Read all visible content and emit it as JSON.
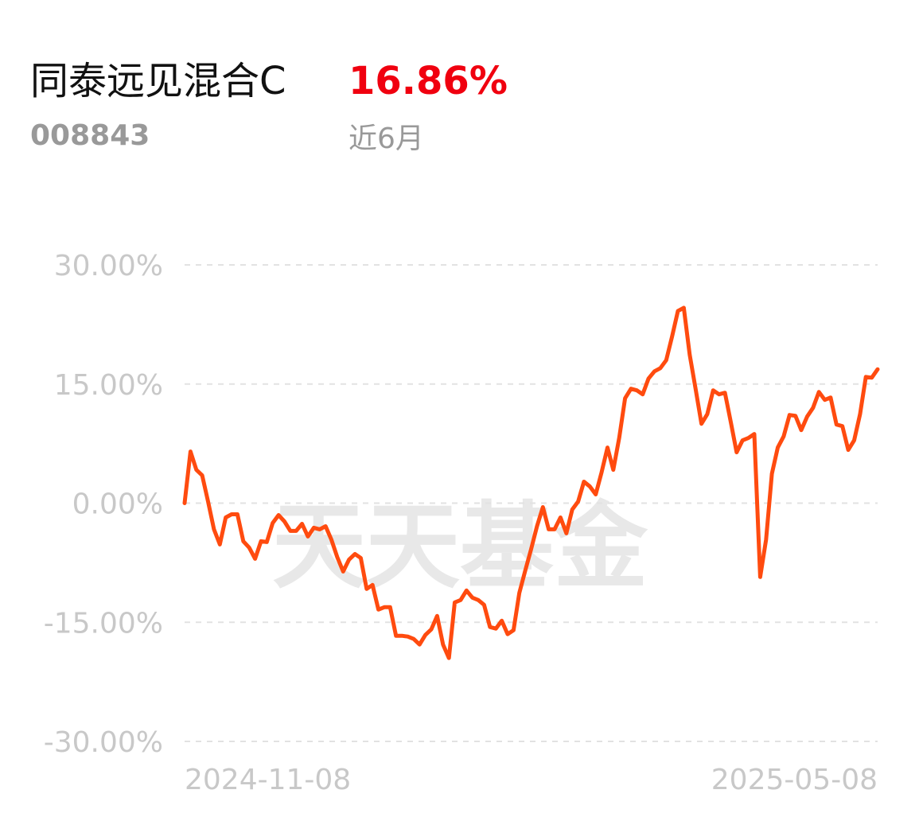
{
  "chart_data": {
    "type": "line",
    "title": "同泰远见混合C",
    "subtitle": "008843",
    "return_label": "16.86%",
    "period": "近6月",
    "watermark": "天天基金",
    "categories": [
      "2024-11-08",
      null,
      null,
      null,
      null,
      null,
      null,
      null,
      null,
      null,
      null,
      null,
      null,
      null,
      null,
      null,
      null,
      null,
      null,
      null,
      null,
      null,
      null,
      null,
      null,
      null,
      null,
      null,
      null,
      null,
      null,
      null,
      null,
      null,
      null,
      null,
      null,
      null,
      null,
      null,
      null,
      null,
      null,
      null,
      null,
      null,
      null,
      null,
      null,
      null,
      null,
      null,
      null,
      null,
      null,
      null,
      null,
      null,
      null,
      null,
      null,
      null,
      null,
      null,
      null,
      null,
      null,
      null,
      null,
      null,
      null,
      null,
      null,
      null,
      null,
      null,
      null,
      null,
      null,
      null,
      null,
      null,
      null,
      null,
      null,
      null,
      null,
      null,
      null,
      null,
      null,
      null,
      null,
      null,
      null,
      null,
      null,
      null,
      null,
      null,
      null,
      null,
      null,
      null,
      null,
      null,
      null,
      null,
      null,
      null,
      null,
      null,
      null,
      null,
      null,
      null,
      null,
      null,
      "2025-05-08"
    ],
    "series": [
      {
        "color": "#ff4b0f",
        "values": [
          0,
          6.5,
          4.2,
          3.5,
          0.2,
          -3.3,
          -5.2,
          -1.8,
          -1.4,
          -1.4,
          -4.8,
          -5.6,
          -7,
          -4.8,
          -4.9,
          -2.5,
          -1.5,
          -2.3,
          -3.5,
          -3.5,
          -2.6,
          -4.2,
          -3.1,
          -3.3,
          -2.9,
          -4.6,
          -6.8,
          -8.6,
          -7.1,
          -6.4,
          -6.9,
          -10.8,
          -10.3,
          -13.4,
          -13.1,
          -13.1,
          -16.7,
          -16.7,
          -16.8,
          -17.1,
          -17.8,
          -16.6,
          -15.9,
          -14.2,
          -17.8,
          -19.5,
          -12.5,
          -12.2,
          -11,
          -11.9,
          -12.2,
          -12.8,
          -15.6,
          -15.8,
          -14.8,
          -16.5,
          -16,
          -11.3,
          -8.5,
          -5.8,
          -2.9,
          -0.5,
          -3.3,
          -3.3,
          -1.8,
          -3.8,
          -0.8,
          0.2,
          2.7,
          2.1,
          1.1,
          3.9,
          7,
          4.2,
          8.2,
          13.2,
          14.4,
          14.2,
          13.7,
          15.7,
          16.6,
          17,
          18,
          21,
          24.2,
          24.6,
          18.7,
          14.4,
          10,
          11.2,
          14.2,
          13.7,
          13.9,
          10.2,
          6.4,
          7.9,
          8.2,
          8.7,
          -9.3,
          -4.6,
          3.7,
          7,
          8.4,
          11.1,
          11,
          9.2,
          10.9,
          12,
          14,
          13,
          13.3,
          9.9,
          9.7,
          6.7,
          7.9,
          11.2,
          15.9,
          15.8,
          16.86
        ]
      }
    ],
    "ylim": [
      -30,
      30
    ],
    "yticks": [
      {
        "value": -30,
        "label": "-30.00%"
      },
      {
        "value": -15,
        "label": "-15.00%"
      },
      {
        "value": 0,
        "label": "0.00%"
      },
      {
        "value": 15,
        "label": "15.00%"
      },
      {
        "value": 30,
        "label": "30.00%"
      }
    ],
    "grid": true
  }
}
